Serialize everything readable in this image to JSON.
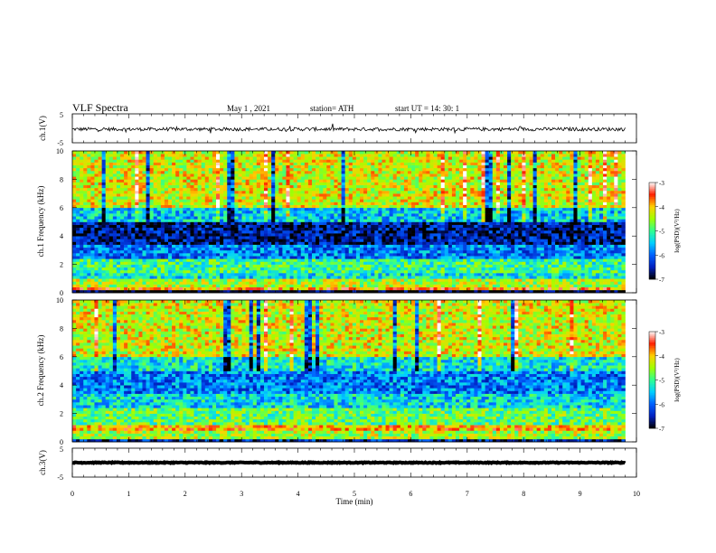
{
  "header": {
    "title": "VLF Spectra",
    "date": "May 1 , 2021",
    "station": "station= ATH",
    "start": "start UT = 14: 30: 1"
  },
  "chart_data": [
    {
      "type": "line",
      "panel": "waveform-ch1",
      "ylabel": "ch.1(V)",
      "ylim": [
        -5,
        5
      ],
      "ytick_labels": [
        "5",
        "-5"
      ],
      "xlim": [
        0,
        10
      ],
      "x_end_min": 9.8,
      "baseline_v": -0.3,
      "noise_amplitude_v": 0.6,
      "color": "#000000"
    },
    {
      "type": "heatmap",
      "panel": "spectrogram-ch1",
      "ylabel": "ch.1 Frequency (kHz)",
      "ylim": [
        0,
        10
      ],
      "ytick_labels": [
        "0",
        "2",
        "4",
        "6",
        "8",
        "10"
      ],
      "xlim": [
        0,
        10
      ],
      "x_end_min": 9.8,
      "colorbar": {
        "label": "log(PSD)(V²/Hz)",
        "range": [
          -7,
          -3
        ],
        "tick_labels": [
          "-3",
          "-4",
          "-5",
          "-6",
          "-7"
        ],
        "colors": [
          "#000000",
          "#0020c0",
          "#0060ff",
          "#00d0ff",
          "#30ff90",
          "#a0ff00",
          "#ffd000",
          "#ff2000",
          "#ffffff"
        ]
      },
      "bands": [
        {
          "f": [
            0.0,
            0.2
          ],
          "level": -7.0
        },
        {
          "f": [
            0.2,
            0.5
          ],
          "level": -3.8
        },
        {
          "f": [
            0.5,
            0.9
          ],
          "level": -4.5
        },
        {
          "f": [
            0.9,
            1.5
          ],
          "level": -5.3
        },
        {
          "f": [
            1.5,
            2.4
          ],
          "level": -5.0
        },
        {
          "f": [
            2.4,
            3.5
          ],
          "level": -5.9
        },
        {
          "f": [
            3.5,
            5.0
          ],
          "level": -6.6
        },
        {
          "f": [
            5.0,
            6.0
          ],
          "level": -5.5
        },
        {
          "f": [
            6.0,
            10.0
          ],
          "level": -4.3
        }
      ]
    },
    {
      "type": "heatmap",
      "panel": "spectrogram-ch2",
      "ylabel": "ch.2 Frequency (kHz)",
      "ylim": [
        0,
        10
      ],
      "ytick_labels": [
        "0",
        "2",
        "4",
        "6",
        "8",
        "10"
      ],
      "xlim": [
        0,
        10
      ],
      "x_end_min": 9.8,
      "colorbar": {
        "label": "log(PSD)(V²/Hz)",
        "range": [
          -7,
          -3
        ],
        "tick_labels": [
          "-3",
          "-4",
          "-5",
          "-6",
          "-7"
        ],
        "colors": [
          "#000000",
          "#0020c0",
          "#0060ff",
          "#00d0ff",
          "#30ff90",
          "#a0ff00",
          "#ffd000",
          "#ff2000",
          "#ffffff"
        ]
      },
      "bands": [
        {
          "f": [
            0.0,
            0.2
          ],
          "level": -6.5
        },
        {
          "f": [
            0.2,
            0.8
          ],
          "level": -4.5
        },
        {
          "f": [
            0.8,
            1.2
          ],
          "level": -3.9
        },
        {
          "f": [
            1.2,
            2.5
          ],
          "level": -4.8
        },
        {
          "f": [
            2.5,
            3.5
          ],
          "level": -5.4
        },
        {
          "f": [
            3.5,
            5.0
          ],
          "level": -5.9
        },
        {
          "f": [
            5.0,
            6.0
          ],
          "level": -5.3
        },
        {
          "f": [
            6.0,
            10.0
          ],
          "level": -4.3
        }
      ]
    },
    {
      "type": "line",
      "panel": "waveform-ch3",
      "ylabel": "ch.3(V)",
      "ylim": [
        -5,
        5
      ],
      "ytick_labels": [
        "5",
        "-5"
      ],
      "xlim": [
        0,
        10
      ],
      "x_end_min": 9.8,
      "baseline_v": 0.0,
      "noise_amplitude_v": 0.15,
      "color": "#000000"
    }
  ],
  "x_axis": {
    "label": "Time (min)",
    "tick_labels": [
      "0",
      "1",
      "2",
      "3",
      "4",
      "5",
      "6",
      "7",
      "8",
      "9",
      "10"
    ]
  }
}
